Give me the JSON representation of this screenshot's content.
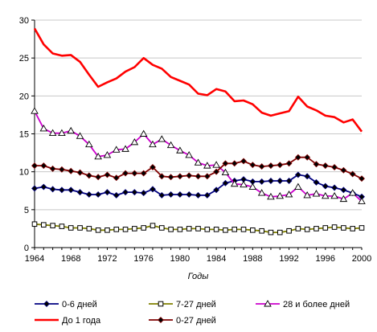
{
  "chart_data": {
    "type": "line",
    "xlabel": "Годы",
    "ylabel": "",
    "xlim": [
      1964,
      2000
    ],
    "ylim": [
      0,
      30
    ],
    "x_ticks": [
      1964,
      1968,
      1972,
      1976,
      1980,
      1984,
      1988,
      1992,
      1996,
      2000
    ],
    "y_ticks": [
      0,
      5,
      10,
      15,
      20,
      25,
      30
    ],
    "x": [
      1964,
      1965,
      1966,
      1967,
      1968,
      1969,
      1970,
      1971,
      1972,
      1973,
      1974,
      1975,
      1976,
      1977,
      1978,
      1979,
      1980,
      1981,
      1982,
      1983,
      1984,
      1985,
      1986,
      1987,
      1988,
      1989,
      1990,
      1991,
      1992,
      1993,
      1994,
      1995,
      1996,
      1997,
      1998,
      1999,
      2000
    ],
    "grid": "horizontal",
    "legend_position": "bottom",
    "series": [
      {
        "name": "0-6 дней",
        "color": "#000080",
        "marker": "diamond-filled",
        "values": [
          7.8,
          8.0,
          7.7,
          7.6,
          7.6,
          7.3,
          7.0,
          7.0,
          7.3,
          6.9,
          7.3,
          7.3,
          7.2,
          7.7,
          6.9,
          7.0,
          7.0,
          7.0,
          6.9,
          6.9,
          7.6,
          8.5,
          8.8,
          9.0,
          8.7,
          8.7,
          8.8,
          8.8,
          8.8,
          9.6,
          9.4,
          8.6,
          8.1,
          7.9,
          7.6,
          7.2,
          6.7
        ]
      },
      {
        "name": "7-27 дней",
        "color": "#808000",
        "marker": "square-open",
        "values": [
          3.1,
          3.0,
          2.9,
          2.8,
          2.6,
          2.6,
          2.5,
          2.3,
          2.3,
          2.4,
          2.4,
          2.5,
          2.6,
          2.9,
          2.6,
          2.4,
          2.4,
          2.5,
          2.5,
          2.4,
          2.4,
          2.3,
          2.4,
          2.4,
          2.3,
          2.2,
          2.0,
          2.0,
          2.2,
          2.5,
          2.4,
          2.5,
          2.6,
          2.7,
          2.6,
          2.5,
          2.6
        ]
      },
      {
        "name": "28 и более дней",
        "color": "#cc00cc",
        "marker": "triangle-open",
        "values": [
          18.0,
          15.7,
          15.1,
          15.1,
          15.4,
          14.7,
          13.6,
          12.0,
          12.2,
          12.9,
          13.0,
          13.9,
          15.0,
          13.6,
          14.3,
          13.5,
          12.8,
          12.2,
          11.2,
          10.8,
          10.9,
          9.9,
          8.4,
          8.3,
          8.0,
          7.2,
          6.7,
          6.8,
          7.0,
          8.0,
          6.9,
          7.1,
          6.8,
          6.8,
          6.4,
          7.2,
          6.1
        ]
      },
      {
        "name": "До 1 года",
        "color": "#ff0000",
        "marker": "none",
        "values": [
          28.9,
          26.8,
          25.6,
          25.3,
          25.4,
          24.5,
          22.8,
          21.2,
          21.8,
          22.3,
          23.2,
          23.8,
          25.0,
          24.1,
          23.6,
          22.5,
          22.0,
          21.5,
          20.3,
          20.1,
          20.9,
          20.6,
          19.3,
          19.4,
          18.9,
          17.8,
          17.4,
          17.7,
          18.0,
          19.9,
          18.6,
          18.1,
          17.4,
          17.2,
          16.5,
          16.9,
          15.3
        ]
      },
      {
        "name": "0-27 дней",
        "color": "#800000",
        "marker": "diamond-filled",
        "values": [
          10.8,
          10.8,
          10.4,
          10.3,
          10.1,
          9.9,
          9.5,
          9.3,
          9.6,
          9.2,
          9.8,
          9.8,
          9.8,
          10.6,
          9.4,
          9.3,
          9.4,
          9.5,
          9.4,
          9.4,
          10.0,
          11.1,
          11.1,
          11.4,
          10.9,
          10.7,
          10.8,
          10.9,
          11.1,
          11.9,
          11.9,
          11.0,
          10.8,
          10.6,
          10.2,
          9.7,
          9.1
        ]
      }
    ]
  }
}
